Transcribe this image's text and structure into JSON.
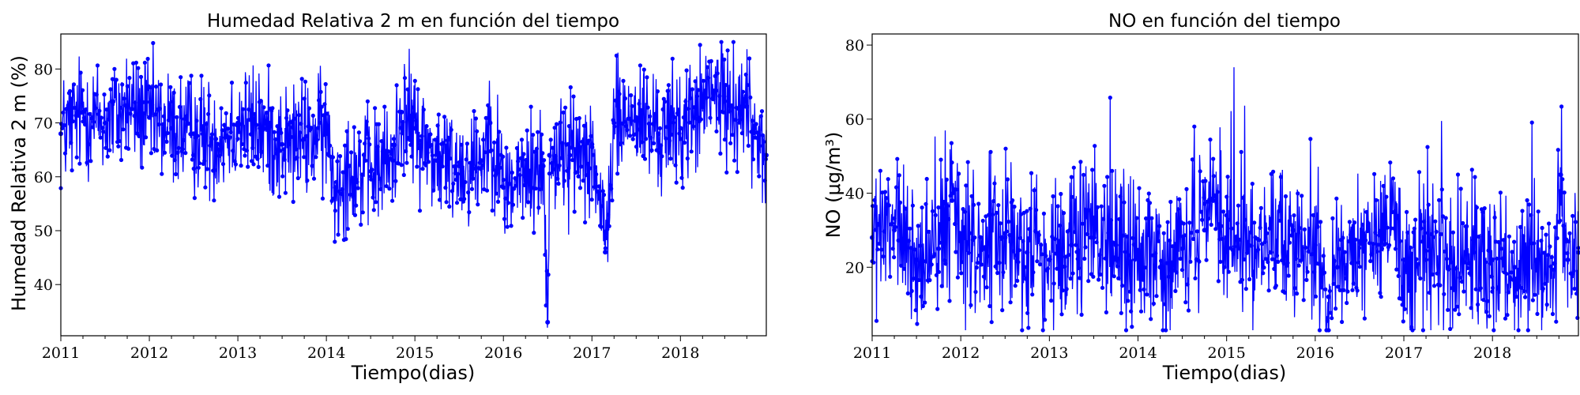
{
  "chart_data": [
    {
      "type": "line",
      "title": "Humedad Relativa 2 m en función del tiempo",
      "xlabel": "Tiempo(dias)",
      "ylabel": "Humedad Relativa 2 m (%)",
      "xlim": [
        2011.0,
        2018.97
      ],
      "ylim": [
        30.5,
        86.5
      ],
      "xticks": [
        2011,
        2012,
        2013,
        2014,
        2015,
        2016,
        2017,
        2018
      ],
      "yticks": [
        40,
        50,
        60,
        70,
        80
      ],
      "grid": false,
      "color": "#0000ff",
      "series": [
        {
          "x": [
            2011.0,
            2011.25,
            2011.5,
            2011.75,
            2012.0,
            2012.25,
            2012.5,
            2012.75,
            2013.0,
            2013.25,
            2013.5,
            2013.75,
            2014.0,
            2014.1,
            2014.25,
            2014.5,
            2014.75,
            2014.85,
            2015.0,
            2015.25,
            2015.5,
            2015.75,
            2015.85,
            2016.0,
            2016.25,
            2016.45,
            2016.5,
            2016.52,
            2016.75,
            2017.0,
            2017.15,
            2017.25,
            2017.5,
            2017.75,
            2018.0,
            2018.25,
            2018.4,
            2018.5,
            2018.75,
            2018.97
          ],
          "y": [
            68,
            72,
            70,
            73,
            71,
            69,
            68,
            67,
            70,
            69,
            66,
            67,
            68,
            58,
            62,
            61,
            63,
            72,
            69,
            63,
            62,
            63,
            70,
            58,
            60,
            62,
            33,
            64,
            64,
            66,
            46,
            70,
            71,
            68,
            69,
            73,
            76,
            74,
            73,
            64
          ]
        }
      ]
    },
    {
      "type": "line",
      "title": "NO en función del tiempo",
      "xlabel": "Tiempo(dias)",
      "ylabel": "NO (μg/m³)",
      "xlim": [
        2011.0,
        2018.97
      ],
      "ylim": [
        1.5,
        83.0
      ],
      "xticks": [
        2011,
        2012,
        2013,
        2014,
        2015,
        2016,
        2017,
        2018
      ],
      "yticks": [
        20,
        40,
        60,
        80
      ],
      "grid": false,
      "color": "#0000ff",
      "series": [
        {
          "x": [
            2011.0,
            2011.25,
            2011.5,
            2011.75,
            2011.9,
            2012.0,
            2012.25,
            2012.5,
            2012.75,
            2013.0,
            2013.25,
            2013.5,
            2013.75,
            2014.0,
            2014.25,
            2014.5,
            2014.75,
            2014.85,
            2015.0,
            2015.25,
            2015.5,
            2015.75,
            2016.0,
            2016.15,
            2016.25,
            2016.5,
            2016.75,
            2016.9,
            2017.0,
            2017.25,
            2017.5,
            2017.75,
            2018.0,
            2018.25,
            2018.5,
            2018.7,
            2018.77,
            2018.85,
            2018.97
          ],
          "y": [
            28,
            30,
            22,
            25,
            38,
            27,
            25,
            28,
            24,
            22,
            26,
            28,
            26,
            24,
            20,
            25,
            30,
            38,
            28,
            26,
            24,
            30,
            26,
            12,
            20,
            27,
            25,
            35,
            22,
            22,
            20,
            21,
            22,
            20,
            22,
            21,
            45,
            22,
            24
          ]
        }
      ]
    }
  ]
}
